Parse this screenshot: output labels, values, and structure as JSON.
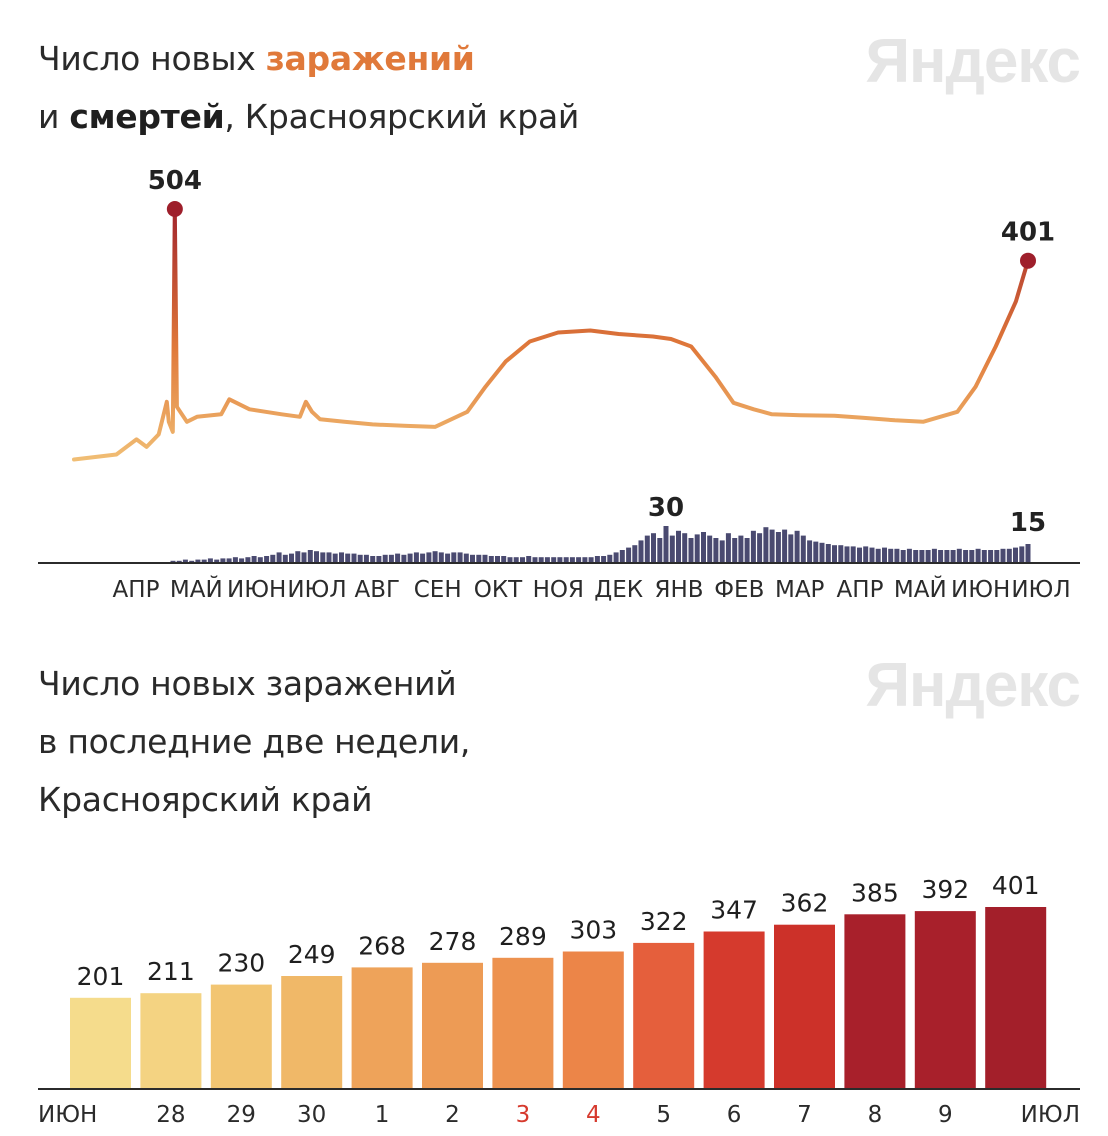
{
  "chart1": {
    "title_line1_prefix": "Число новых ",
    "title_line1_highlight": "заражений",
    "title_line2_prefix": "и ",
    "title_line2_highlight": "смертей",
    "title_line2_suffix": ", Красноярский край",
    "logo": "Яндекс"
  },
  "chart2": {
    "title_line1": "Число новых заражений",
    "title_line2": "в последние две недели,",
    "title_line3": "Красноярский край",
    "logo": "Яндекс"
  },
  "chart_data": [
    {
      "type": "line",
      "colors": {
        "low": "#f2c47a",
        "mid": "#e0793a",
        "high": "#9e1f2b",
        "deaths": "#4a4a70"
      },
      "months": [
        "АПР",
        "МАЙ",
        "ИЮН",
        "ИЮЛ",
        "АВГ",
        "СЕН",
        "ОКТ",
        "НОЯ",
        "ДЕК",
        "ЯНВ",
        "ФЕВ",
        "МАР",
        "АПР",
        "МАЙ",
        "ИЮН",
        "ИЮЛ"
      ],
      "series": [
        {
          "kind": "cases",
          "x": [
            "2020-03-20",
            "2020-04-10",
            "2020-04-20",
            "2020-04-25",
            "2020-05-01",
            "2020-05-05",
            "2020-05-06",
            "2020-05-08",
            "2020-05-09",
            "2020-05-10",
            "2020-05-15",
            "2020-05-20",
            "2020-06-01",
            "2020-06-05",
            "2020-06-15",
            "2020-07-01",
            "2020-07-10",
            "2020-07-13",
            "2020-07-16",
            "2020-07-20",
            "2020-08-01",
            "2020-08-15",
            "2020-09-01",
            "2020-09-15",
            "2020-10-01",
            "2020-10-10",
            "2020-10-20",
            "2020-11-01",
            "2020-11-15",
            "2020-12-01",
            "2020-12-15",
            "2021-01-01",
            "2021-01-10",
            "2021-01-20",
            "2021-02-01",
            "2021-02-10",
            "2021-02-20",
            "2021-03-01",
            "2021-03-15",
            "2021-04-01",
            "2021-04-15",
            "2021-05-01",
            "2021-05-15",
            "2021-06-01",
            "2021-06-10",
            "2021-06-20",
            "2021-06-30",
            "2021-07-06"
          ],
          "values": [
            5,
            15,
            45,
            30,
            55,
            120,
            80,
            60,
            504,
            110,
            80,
            90,
            95,
            125,
            105,
            95,
            90,
            120,
            100,
            85,
            80,
            75,
            72,
            70,
            100,
            150,
            200,
            240,
            258,
            262,
            255,
            250,
            245,
            230,
            170,
            118,
            105,
            95,
            93,
            92,
            88,
            83,
            80,
            100,
            150,
            230,
            320,
            401
          ],
          "peak_label": "504",
          "last_label": "401"
        },
        {
          "kind": "deaths",
          "values": [
            0,
            0,
            0,
            0,
            1,
            1,
            2,
            1,
            2,
            2,
            3,
            2,
            3,
            3,
            4,
            3,
            4,
            5,
            4,
            5,
            6,
            8,
            6,
            7,
            9,
            8,
            10,
            9,
            8,
            8,
            7,
            8,
            7,
            7,
            6,
            6,
            5,
            5,
            6,
            6,
            7,
            6,
            7,
            8,
            7,
            8,
            9,
            8,
            7,
            8,
            8,
            7,
            6,
            6,
            6,
            5,
            5,
            5,
            4,
            4,
            4,
            5,
            4,
            4,
            4,
            4,
            4,
            4,
            4,
            4,
            4,
            4,
            5,
            5,
            6,
            8,
            10,
            12,
            14,
            18,
            22,
            24,
            20,
            30,
            22,
            26,
            24,
            20,
            23,
            25,
            22,
            20,
            18,
            24,
            20,
            22,
            20,
            26,
            24,
            29,
            27,
            25,
            27,
            23,
            26,
            22,
            18,
            17,
            16,
            15,
            14,
            14,
            13,
            13,
            12,
            13,
            12,
            11,
            12,
            11,
            11,
            10,
            11,
            10,
            10,
            10,
            11,
            10,
            10,
            10,
            11,
            10,
            10,
            11,
            10,
            10,
            10,
            11,
            11,
            12,
            13,
            15
          ],
          "peak_label": "30",
          "last_label": "15"
        }
      ]
    },
    {
      "type": "bar",
      "categories": [
        "ИЮН",
        "28",
        "29",
        "30",
        "1",
        "2",
        "3",
        "4",
        "5",
        "6",
        "7",
        "8",
        "9",
        "ИЮЛ"
      ],
      "values": [
        201,
        211,
        230,
        249,
        268,
        278,
        289,
        303,
        322,
        347,
        362,
        385,
        392,
        401
      ],
      "ylim": [
        0,
        401
      ],
      "highlight_categories": [
        "3",
        "4"
      ],
      "colors": [
        "#f5dc8c",
        "#f4d382",
        "#f2c572",
        "#f0b868",
        "#eea35a",
        "#ed9b55",
        "#ed924f",
        "#ec8548",
        "#e55f3c",
        "#d53a2d",
        "#cc3129",
        "#a8202b",
        "#a8202b",
        "#a31f2a"
      ],
      "label_color": "#1f1f1f",
      "highlight_label_color": "#d63a2e"
    }
  ]
}
